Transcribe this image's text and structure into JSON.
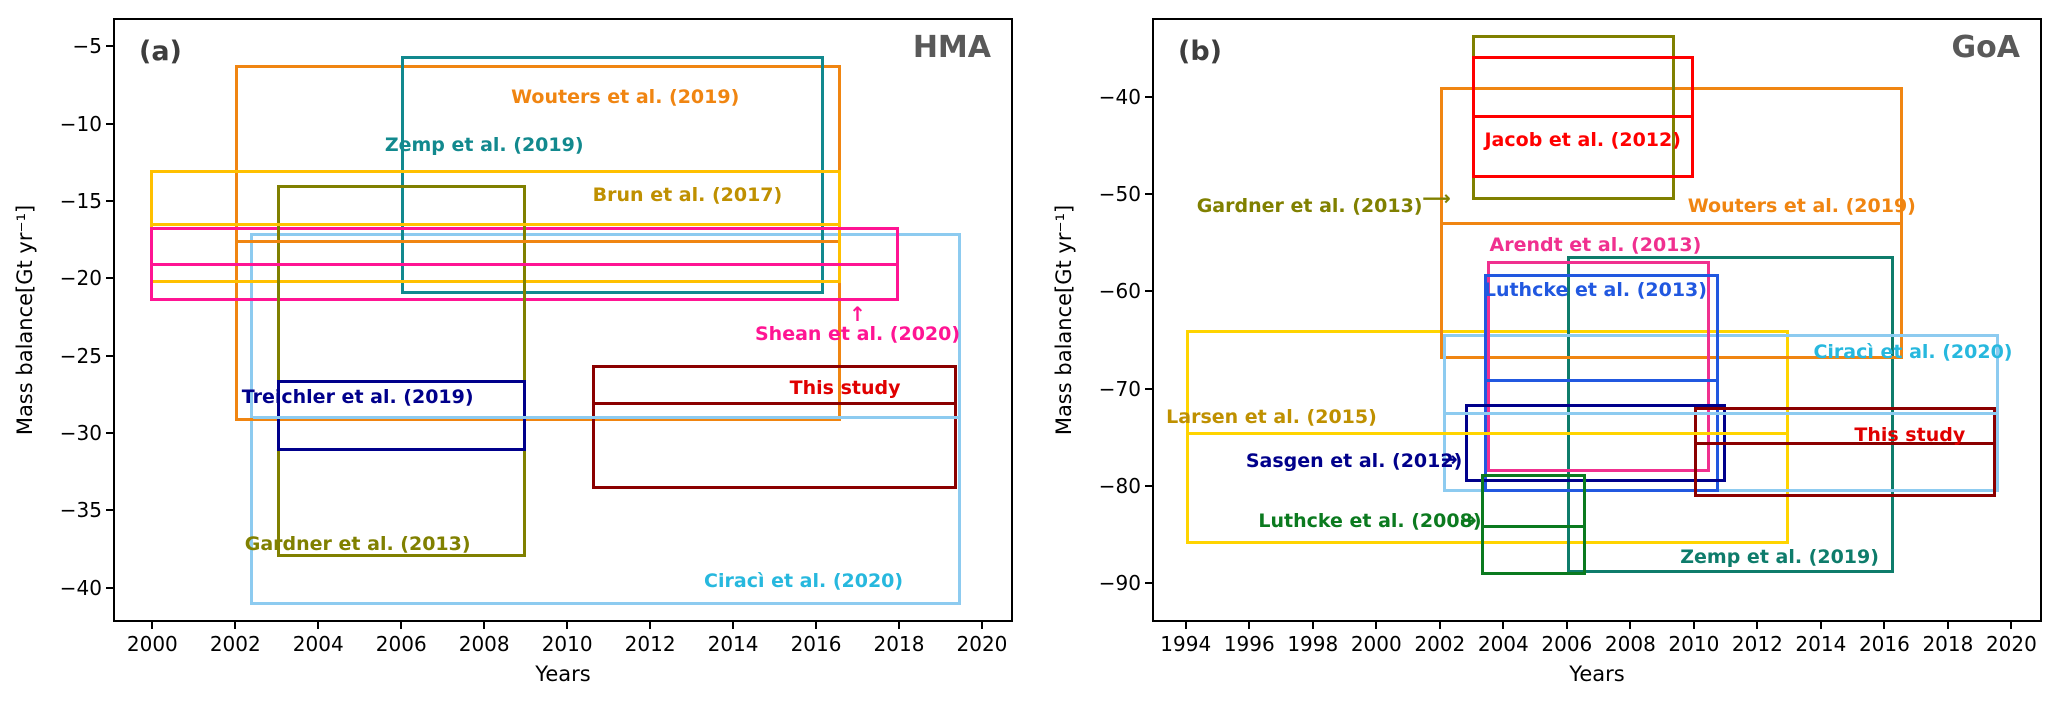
{
  "figure": {
    "background": "#ffffff"
  },
  "chart_data": [
    {
      "type": "box-span",
      "panel_label": "(a)",
      "region_label": "HMA",
      "xlabel": "Years",
      "ylabel": "Mass balance[Gt yr⁻¹]",
      "xlim": [
        1999.1,
        2020.7
      ],
      "ylim": [
        -42.1,
        -3.3
      ],
      "xticks": [
        2000,
        2002,
        2004,
        2006,
        2008,
        2010,
        2012,
        2014,
        2016,
        2018,
        2020
      ],
      "yticks": [
        -5,
        -10,
        -15,
        -20,
        -25,
        -30,
        -35,
        -40
      ],
      "grid": false,
      "studies": [
        {
          "name": "Ciracì et al. (2020)",
          "color": "#8DCBF0",
          "label_color": "#27B8DE",
          "x0": 2002.35,
          "x1": 2019.5,
          "y0": -41.1,
          "y1": -17.1,
          "mean": -29.0,
          "label_x": 2015.7,
          "label_y": -39.6
        },
        {
          "name": "Wouters et al. (2019)",
          "color": "#F08511",
          "x0": 2002.0,
          "x1": 2016.6,
          "y0": -29.2,
          "y1": -6.2,
          "mean": -17.6,
          "label_x": 2011.4,
          "label_y": -8.3
        },
        {
          "name": "Zemp et al. (2019)",
          "color": "#12898E",
          "x0": 2006.0,
          "x1": 2016.2,
          "y0": -21.0,
          "y1": -5.6,
          "label_x": 2008.0,
          "label_y": -11.4
        },
        {
          "name": "Brun et al. (2017)",
          "color": "#FFC000",
          "label_color": "#BF9000",
          "x0": 1999.95,
          "x1": 2016.6,
          "y0": -20.3,
          "y1": -13.0,
          "mean": -16.5,
          "label_x": 2012.9,
          "label_y": -14.6
        },
        {
          "name": "Shean et al. (2020)",
          "color": "#FF1493",
          "x0": 1999.95,
          "x1": 2018.0,
          "y0": -21.5,
          "y1": -16.7,
          "mean": -19.1,
          "label_x": 2017.0,
          "label_y": -23.6,
          "arrow": {
            "glyph": "↑",
            "x": 2017.0,
            "y": -22.3
          }
        },
        {
          "name": "Gardner et al. (2013)",
          "color": "#808000",
          "x0": 2003.0,
          "x1": 2009.0,
          "y0": -38.0,
          "y1": -14.0,
          "label_x": 2004.95,
          "label_y": -37.2
        },
        {
          "name": "Treichler et al. (2019)",
          "color": "#00008B",
          "x0": 2003.0,
          "x1": 2009.0,
          "y0": -31.2,
          "y1": -26.6,
          "label_x": 2004.95,
          "label_y": -27.7
        },
        {
          "name": "This study",
          "color": "#8B0000",
          "label_color": "#E00000",
          "x0": 2010.6,
          "x1": 2019.4,
          "y0": -33.6,
          "y1": -25.6,
          "mean": -28.1,
          "label_x": 2016.7,
          "label_y": -27.1
        }
      ]
    },
    {
      "type": "box-span",
      "panel_label": "(b)",
      "region_label": "GoA",
      "xlabel": "Years",
      "ylabel": "Mass balance[Gt yr⁻¹]",
      "xlim": [
        1993.0,
        2020.9
      ],
      "ylim": [
        -93.8,
        -32.1
      ],
      "xticks": [
        1994,
        1996,
        1998,
        2000,
        2002,
        2004,
        2006,
        2008,
        2010,
        2012,
        2014,
        2016,
        2018,
        2020
      ],
      "yticks": [
        -40,
        -50,
        -60,
        -70,
        -80,
        -90
      ],
      "grid": false,
      "studies": [
        {
          "name": "Larsen et al. (2015)",
          "color": "#FFD400",
          "label_color": "#BF9000",
          "x0": 1994.0,
          "x1": 2013.0,
          "y0": -86.0,
          "y1": -64.0,
          "mean": -74.6,
          "label_x": 1996.7,
          "label_y": -72.9
        },
        {
          "name": "Zemp et al. (2019)",
          "color": "#0E7C6B",
          "x0": 2006.0,
          "x1": 2016.3,
          "y0": -89.0,
          "y1": -56.4,
          "label_x": 2012.7,
          "label_y": -87.3
        },
        {
          "name": "Wouters et al. (2019)",
          "color": "#F08511",
          "x0": 2002.0,
          "x1": 2016.6,
          "y0": -67.0,
          "y1": -39.0,
          "mean": -53.0,
          "label_x": 2013.4,
          "label_y": -51.2
        },
        {
          "name": "Ciracì et al. (2020)",
          "color": "#8DCBF0",
          "label_color": "#27B8DE",
          "x0": 2002.1,
          "x1": 2019.6,
          "y0": -80.6,
          "y1": -64.4,
          "mean": -72.6,
          "label_x": 2016.9,
          "label_y": -66.2
        },
        {
          "name": "Gardner et al. (2013)",
          "color": "#808000",
          "x0": 2003.0,
          "x1": 2009.4,
          "y0": -50.6,
          "y1": -33.6,
          "label_x": 1997.9,
          "label_y": -51.2,
          "arrow": {
            "glyph": "⟶",
            "x": 2001.9,
            "y": -50.4
          }
        },
        {
          "name": "Jacob et al. (2012)",
          "color": "#FF0000",
          "x0": 2003.0,
          "x1": 2010.0,
          "y0": -48.3,
          "y1": -35.8,
          "mean": -42.0,
          "label_x": 2006.5,
          "label_y": -44.4
        },
        {
          "name": "Arendt et al. (2013)",
          "color": "#F0308F",
          "x0": 2003.5,
          "x1": 2010.5,
          "y0": -78.6,
          "y1": -56.9,
          "label_x": 2006.9,
          "label_y": -55.2
        },
        {
          "name": "Luthcke et al. (2013)",
          "color": "#2158E0",
          "x0": 2003.4,
          "x1": 2010.8,
          "y0": -80.6,
          "y1": -58.2,
          "mean": -69.2,
          "label_x": 2006.9,
          "label_y": -59.9
        },
        {
          "name": "Sasgen et al. (2012)",
          "color": "#00008B",
          "x0": 2002.8,
          "x1": 2011.0,
          "y0": -79.6,
          "y1": -71.6,
          "label_x": 1999.3,
          "label_y": -77.4,
          "arrow": {
            "glyph": "→",
            "x": 2002.3,
            "y": -77.2
          }
        },
        {
          "name": "Luthcke et al. (2008)",
          "color": "#0B7A1F",
          "x0": 2003.3,
          "x1": 2006.6,
          "y0": -89.2,
          "y1": -78.8,
          "mean": -84.2,
          "label_x": 1999.8,
          "label_y": -83.6,
          "arrow": {
            "glyph": "→",
            "x": 2002.9,
            "y": -83.5
          }
        },
        {
          "name": "This study",
          "color": "#8B0000",
          "label_color": "#E00000",
          "x0": 2010.0,
          "x1": 2019.5,
          "y0": -81.2,
          "y1": -71.9,
          "mean": -75.6,
          "label_x": 2016.8,
          "label_y": -74.8
        }
      ]
    }
  ]
}
